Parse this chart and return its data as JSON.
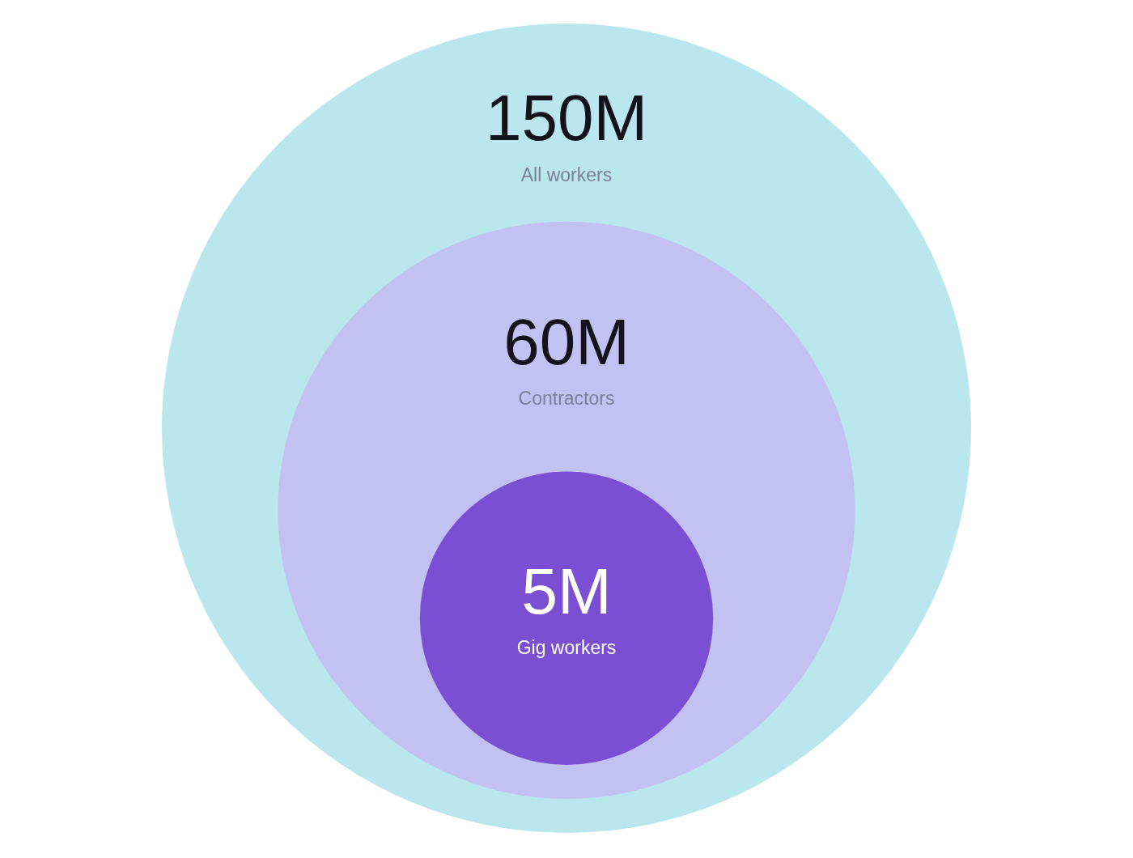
{
  "chart_data": {
    "type": "other",
    "categories": [
      "All workers",
      "Contractors",
      "Gig workers"
    ],
    "values": [
      150,
      60,
      5
    ],
    "value_labels": [
      "150M",
      "60M",
      "5M"
    ],
    "colors": [
      "#bae6ee",
      "#c2c1f1",
      "#7b4fd3"
    ]
  }
}
